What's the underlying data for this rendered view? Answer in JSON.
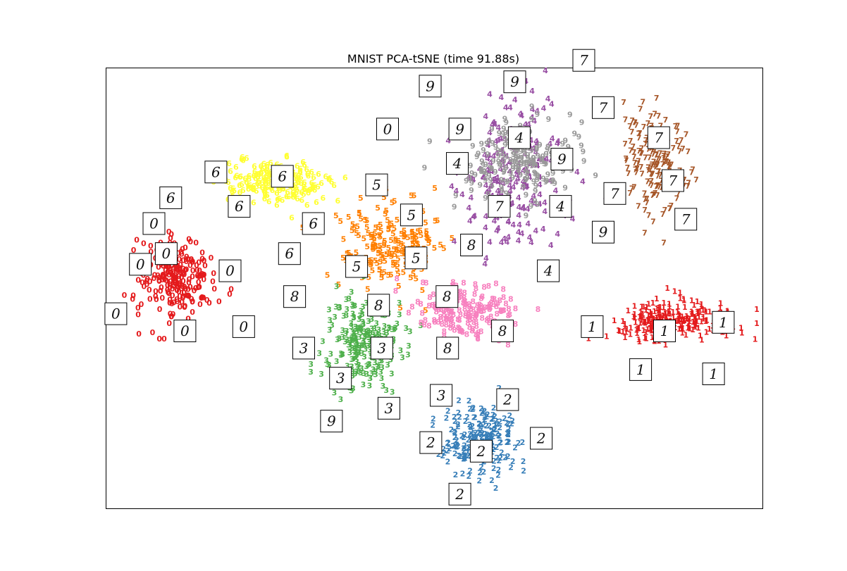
{
  "chart_data": {
    "type": "scatter",
    "title": "MNIST PCA-tSNE (time 91.88s)",
    "xlabel": "",
    "ylabel": "",
    "xlim": [
      0,
      1
    ],
    "ylim": [
      0,
      1
    ],
    "axis_ticks": false,
    "grid": false,
    "legend": "none",
    "marker": "digit label text",
    "colors": {
      "0": "#e41a1c",
      "1": "#e41a1c",
      "2": "#377eb8",
      "3": "#4daf4a",
      "4": "#984ea3",
      "5": "#ff7f00",
      "6": "#ffff33",
      "7": "#a65628",
      "8": "#f781bf",
      "9": "#999999"
    },
    "clusters": [
      {
        "digit": "0",
        "center": [
          0.1,
          0.52
        ],
        "spread": [
          0.055,
          0.085
        ],
        "count": 230
      },
      {
        "digit": "6",
        "center": [
          0.25,
          0.74
        ],
        "spread": [
          0.075,
          0.045
        ],
        "count": 190
      },
      {
        "digit": "5",
        "center": [
          0.43,
          0.6
        ],
        "spread": [
          0.07,
          0.09
        ],
        "count": 200
      },
      {
        "digit": "3",
        "center": [
          0.39,
          0.36
        ],
        "spread": [
          0.055,
          0.1
        ],
        "count": 230
      },
      {
        "digit": "8",
        "center": [
          0.55,
          0.44
        ],
        "spread": [
          0.07,
          0.06
        ],
        "count": 190
      },
      {
        "digit": "2",
        "center": [
          0.57,
          0.14
        ],
        "spread": [
          0.06,
          0.07
        ],
        "count": 200
      },
      {
        "digit": "1",
        "center": [
          0.87,
          0.42
        ],
        "spread": [
          0.09,
          0.04
        ],
        "count": 240
      },
      {
        "digit": "7",
        "center": [
          0.84,
          0.79
        ],
        "spread": [
          0.045,
          0.11
        ],
        "count": 170
      },
      {
        "digit": "4",
        "center": [
          0.62,
          0.75
        ],
        "spread": [
          0.075,
          0.14
        ],
        "count": 220
      },
      {
        "digit": "9",
        "center": [
          0.63,
          0.79
        ],
        "spread": [
          0.09,
          0.08
        ],
        "count": 200
      }
    ],
    "thumbnails": [
      {
        "digit": "0",
        "x": 0.045,
        "y": 0.555
      },
      {
        "digit": "0",
        "x": 0.085,
        "y": 0.58
      },
      {
        "digit": "0",
        "x": 0.066,
        "y": 0.65
      },
      {
        "digit": "0",
        "x": 0.184,
        "y": 0.54
      },
      {
        "digit": "0",
        "x": 0.007,
        "y": 0.44
      },
      {
        "digit": "0",
        "x": 0.114,
        "y": 0.4
      },
      {
        "digit": "0",
        "x": 0.205,
        "y": 0.41
      },
      {
        "digit": "6",
        "x": 0.162,
        "y": 0.77
      },
      {
        "digit": "6",
        "x": 0.265,
        "y": 0.76
      },
      {
        "digit": "6",
        "x": 0.092,
        "y": 0.71
      },
      {
        "digit": "6",
        "x": 0.198,
        "y": 0.69
      },
      {
        "digit": "6",
        "x": 0.313,
        "y": 0.65
      },
      {
        "digit": "6",
        "x": 0.276,
        "y": 0.58
      },
      {
        "digit": "0",
        "x": 0.428,
        "y": 0.87
      },
      {
        "digit": "5",
        "x": 0.411,
        "y": 0.74
      },
      {
        "digit": "5",
        "x": 0.465,
        "y": 0.67
      },
      {
        "digit": "5",
        "x": 0.472,
        "y": 0.57
      },
      {
        "digit": "5",
        "x": 0.38,
        "y": 0.55
      },
      {
        "digit": "8",
        "x": 0.284,
        "y": 0.48
      },
      {
        "digit": "8",
        "x": 0.414,
        "y": 0.46
      },
      {
        "digit": "3",
        "x": 0.298,
        "y": 0.36
      },
      {
        "digit": "3",
        "x": 0.419,
        "y": 0.36
      },
      {
        "digit": "3",
        "x": 0.355,
        "y": 0.29
      },
      {
        "digit": "3",
        "x": 0.43,
        "y": 0.22
      },
      {
        "digit": "9",
        "x": 0.341,
        "y": 0.19
      },
      {
        "digit": "3",
        "x": 0.511,
        "y": 0.25
      },
      {
        "digit": "8",
        "x": 0.52,
        "y": 0.48
      },
      {
        "digit": "8",
        "x": 0.558,
        "y": 0.6
      },
      {
        "digit": "8",
        "x": 0.606,
        "y": 0.4
      },
      {
        "digit": "8",
        "x": 0.521,
        "y": 0.36
      },
      {
        "digit": "2",
        "x": 0.614,
        "y": 0.24
      },
      {
        "digit": "2",
        "x": 0.495,
        "y": 0.14
      },
      {
        "digit": "2",
        "x": 0.573,
        "y": 0.12
      },
      {
        "digit": "2",
        "x": 0.666,
        "y": 0.15
      },
      {
        "digit": "2",
        "x": 0.54,
        "y": 0.02
      },
      {
        "digit": "9",
        "x": 0.494,
        "y": 0.97
      },
      {
        "digit": "9",
        "x": 0.625,
        "y": 0.98
      },
      {
        "digit": "9",
        "x": 0.54,
        "y": 0.87
      },
      {
        "digit": "4",
        "x": 0.536,
        "y": 0.79
      },
      {
        "digit": "4",
        "x": 0.632,
        "y": 0.85
      },
      {
        "digit": "9",
        "x": 0.698,
        "y": 0.8
      },
      {
        "digit": "7",
        "x": 0.601,
        "y": 0.69
      },
      {
        "digit": "4",
        "x": 0.696,
        "y": 0.69
      },
      {
        "digit": "9",
        "x": 0.762,
        "y": 0.63
      },
      {
        "digit": "7",
        "x": 0.732,
        "y": 1.03
      },
      {
        "digit": "7",
        "x": 0.762,
        "y": 0.92
      },
      {
        "digit": "7",
        "x": 0.848,
        "y": 0.85
      },
      {
        "digit": "7",
        "x": 0.87,
        "y": 0.75
      },
      {
        "digit": "7",
        "x": 0.78,
        "y": 0.72
      },
      {
        "digit": "7",
        "x": 0.89,
        "y": 0.66
      },
      {
        "digit": "4",
        "x": 0.677,
        "y": 0.54
      },
      {
        "digit": "1",
        "x": 0.745,
        "y": 0.41
      },
      {
        "digit": "1",
        "x": 0.857,
        "y": 0.4
      },
      {
        "digit": "1",
        "x": 0.948,
        "y": 0.42
      },
      {
        "digit": "1",
        "x": 0.82,
        "y": 0.31
      },
      {
        "digit": "1",
        "x": 0.933,
        "y": 0.3
      }
    ]
  }
}
